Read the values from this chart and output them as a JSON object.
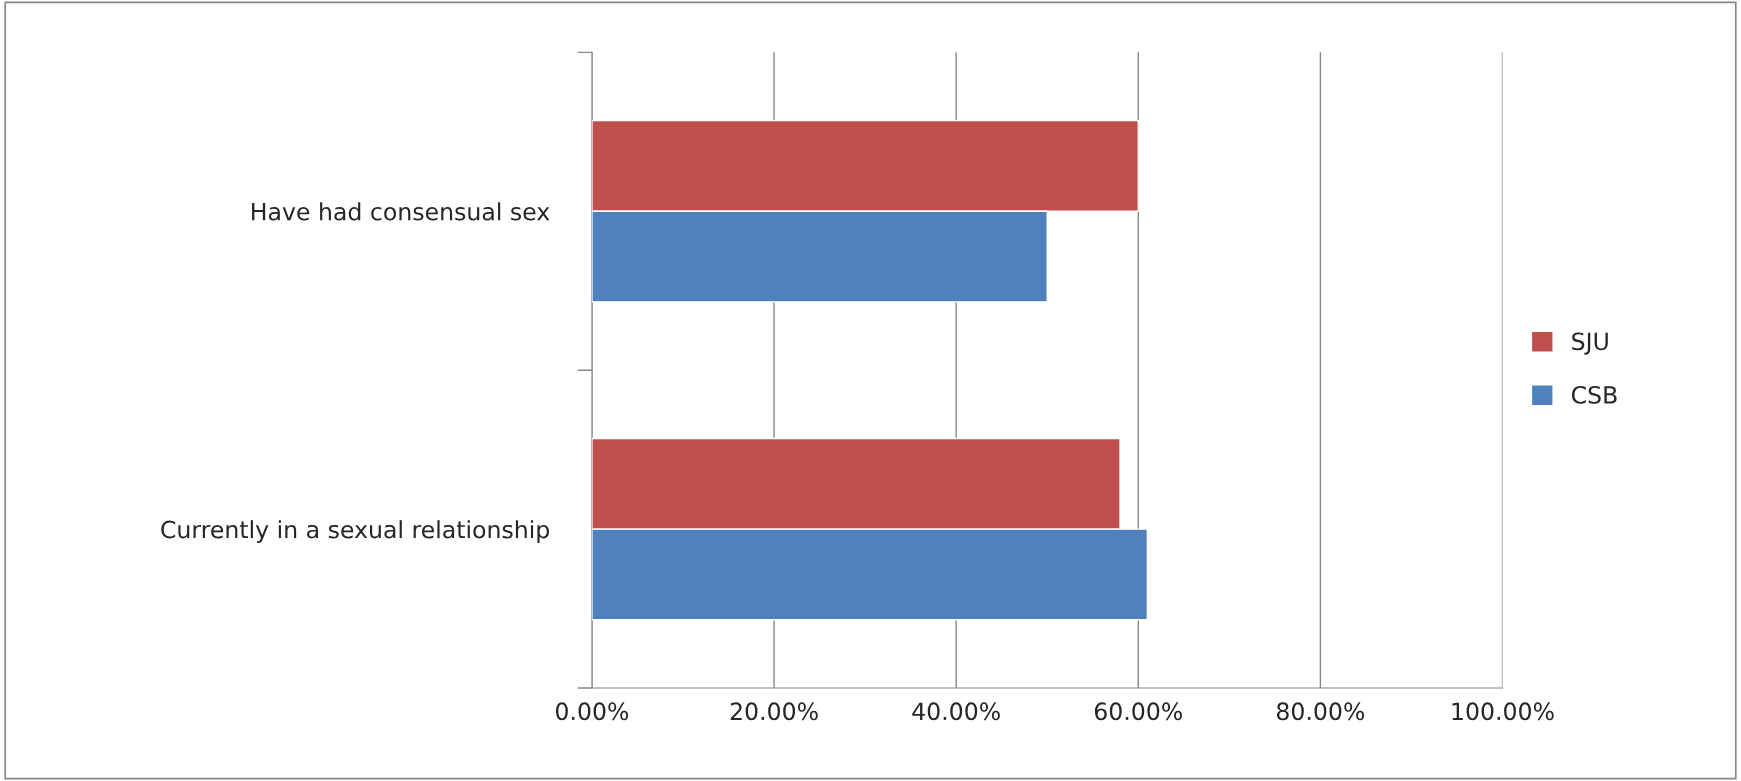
{
  "chart_data": {
    "type": "bar",
    "orientation": "horizontal",
    "categories": [
      "Have had consensual sex",
      "Currently in a sexual relationship"
    ],
    "series": [
      {
        "name": "SJU",
        "color": "#c0504d",
        "values": [
          60,
          58
        ]
      },
      {
        "name": "CSB",
        "color": "#4f81bd",
        "values": [
          50,
          61
        ]
      }
    ],
    "xlim": [
      0,
      100
    ],
    "xticks": [
      {
        "value": 0,
        "label": "0.00%"
      },
      {
        "value": 20,
        "label": "20.00%"
      },
      {
        "value": 40,
        "label": "40.00%"
      },
      {
        "value": 60,
        "label": "60.00%"
      },
      {
        "value": 80,
        "label": "80.00%"
      },
      {
        "value": 100,
        "label": "100.00%"
      }
    ],
    "grid": "x",
    "legend": "right"
  }
}
